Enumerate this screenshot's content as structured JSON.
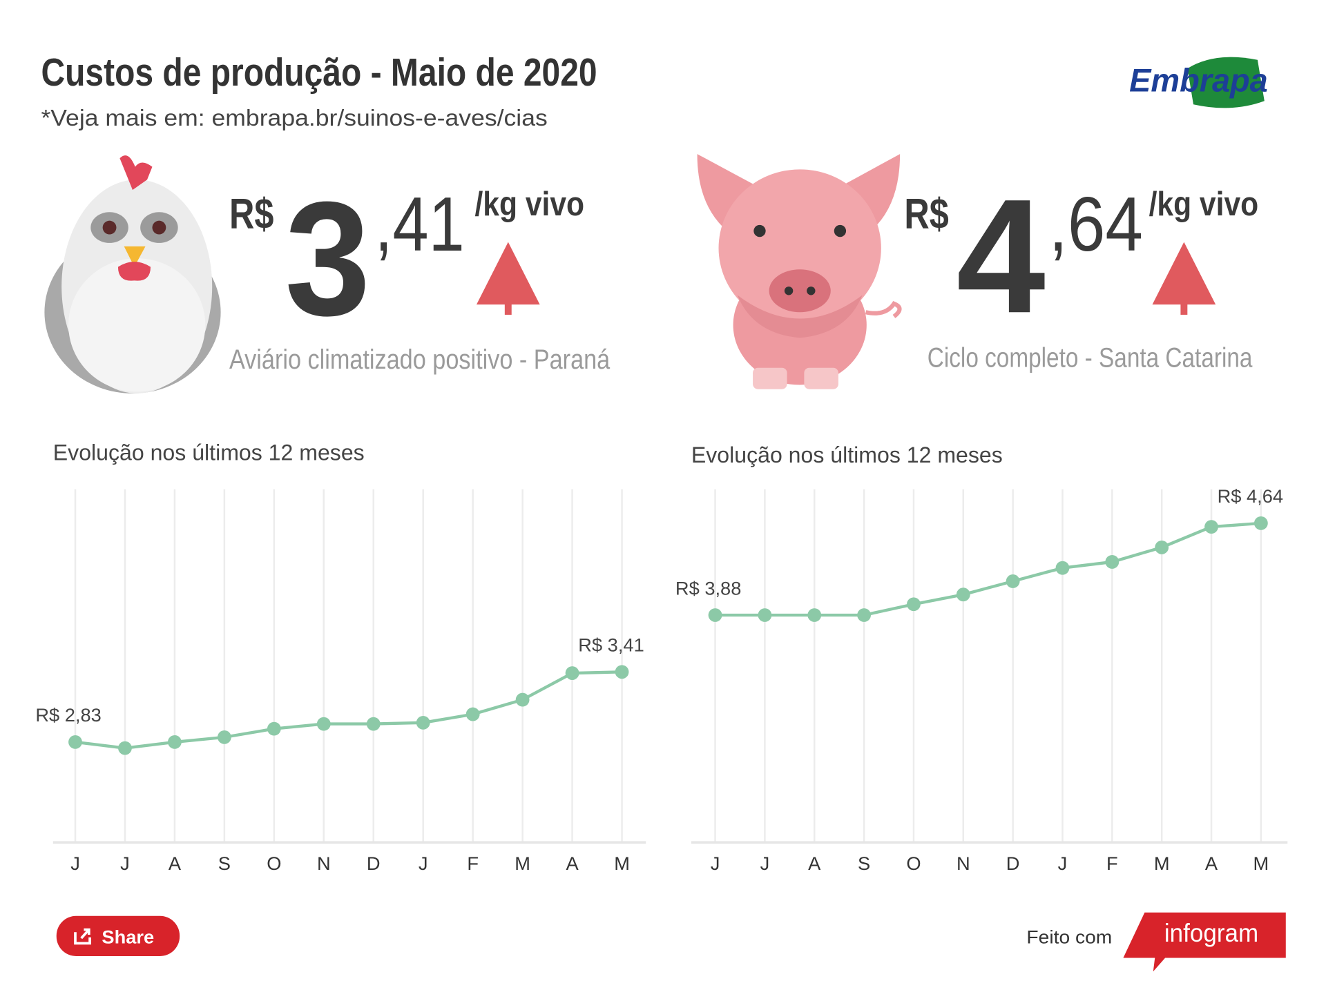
{
  "header": {
    "title": "Custos de produção - Maio de 2020",
    "subtitle": "*Veja mais em: embrapa.br/suinos-e-aves/cias",
    "logo": "Embrapa"
  },
  "prices": [
    {
      "currency": "R$",
      "integer": "3",
      "decimal": ",41",
      "unit": "/kg vivo",
      "caption": "Aviário climatizado positivo - Paraná"
    },
    {
      "currency": "R$",
      "integer": "4",
      "decimal": ",64",
      "unit": "/kg vivo",
      "caption": "Ciclo completo - Santa Catarina"
    }
  ],
  "chart_data": [
    {
      "type": "line",
      "title": "Evolução nos últimos 12 meses",
      "categories": [
        "J",
        "J",
        "A",
        "S",
        "O",
        "N",
        "D",
        "J",
        "F",
        "M",
        "A",
        "M"
      ],
      "values": [
        2.83,
        2.78,
        2.83,
        2.87,
        2.94,
        2.98,
        2.98,
        2.99,
        3.06,
        3.18,
        3.4,
        3.41
      ],
      "value_labels": [
        "R$ 2,83",
        null,
        null,
        null,
        null,
        null,
        null,
        null,
        null,
        null,
        null,
        "R$ 3,41"
      ],
      "color": "#8cc9a7",
      "ylim": [
        2,
        4.9
      ],
      "grid": true
    },
    {
      "type": "line",
      "title": "Evolução nos últimos 12 meses",
      "categories": [
        "J",
        "J",
        "A",
        "S",
        "O",
        "N",
        "D",
        "J",
        "F",
        "M",
        "A",
        "M"
      ],
      "values": [
        3.88,
        3.88,
        3.88,
        3.88,
        3.97,
        4.05,
        4.16,
        4.27,
        4.32,
        4.44,
        4.61,
        4.64
      ],
      "value_labels": [
        "R$ 3,88",
        null,
        null,
        null,
        null,
        null,
        null,
        null,
        null,
        null,
        null,
        "R$ 4,64"
      ],
      "color": "#8cc9a7",
      "ylim": [
        2,
        4.9
      ],
      "grid": true
    }
  ],
  "footer": {
    "share": "Share",
    "made_with": "Feito com",
    "brand": "infogram"
  }
}
